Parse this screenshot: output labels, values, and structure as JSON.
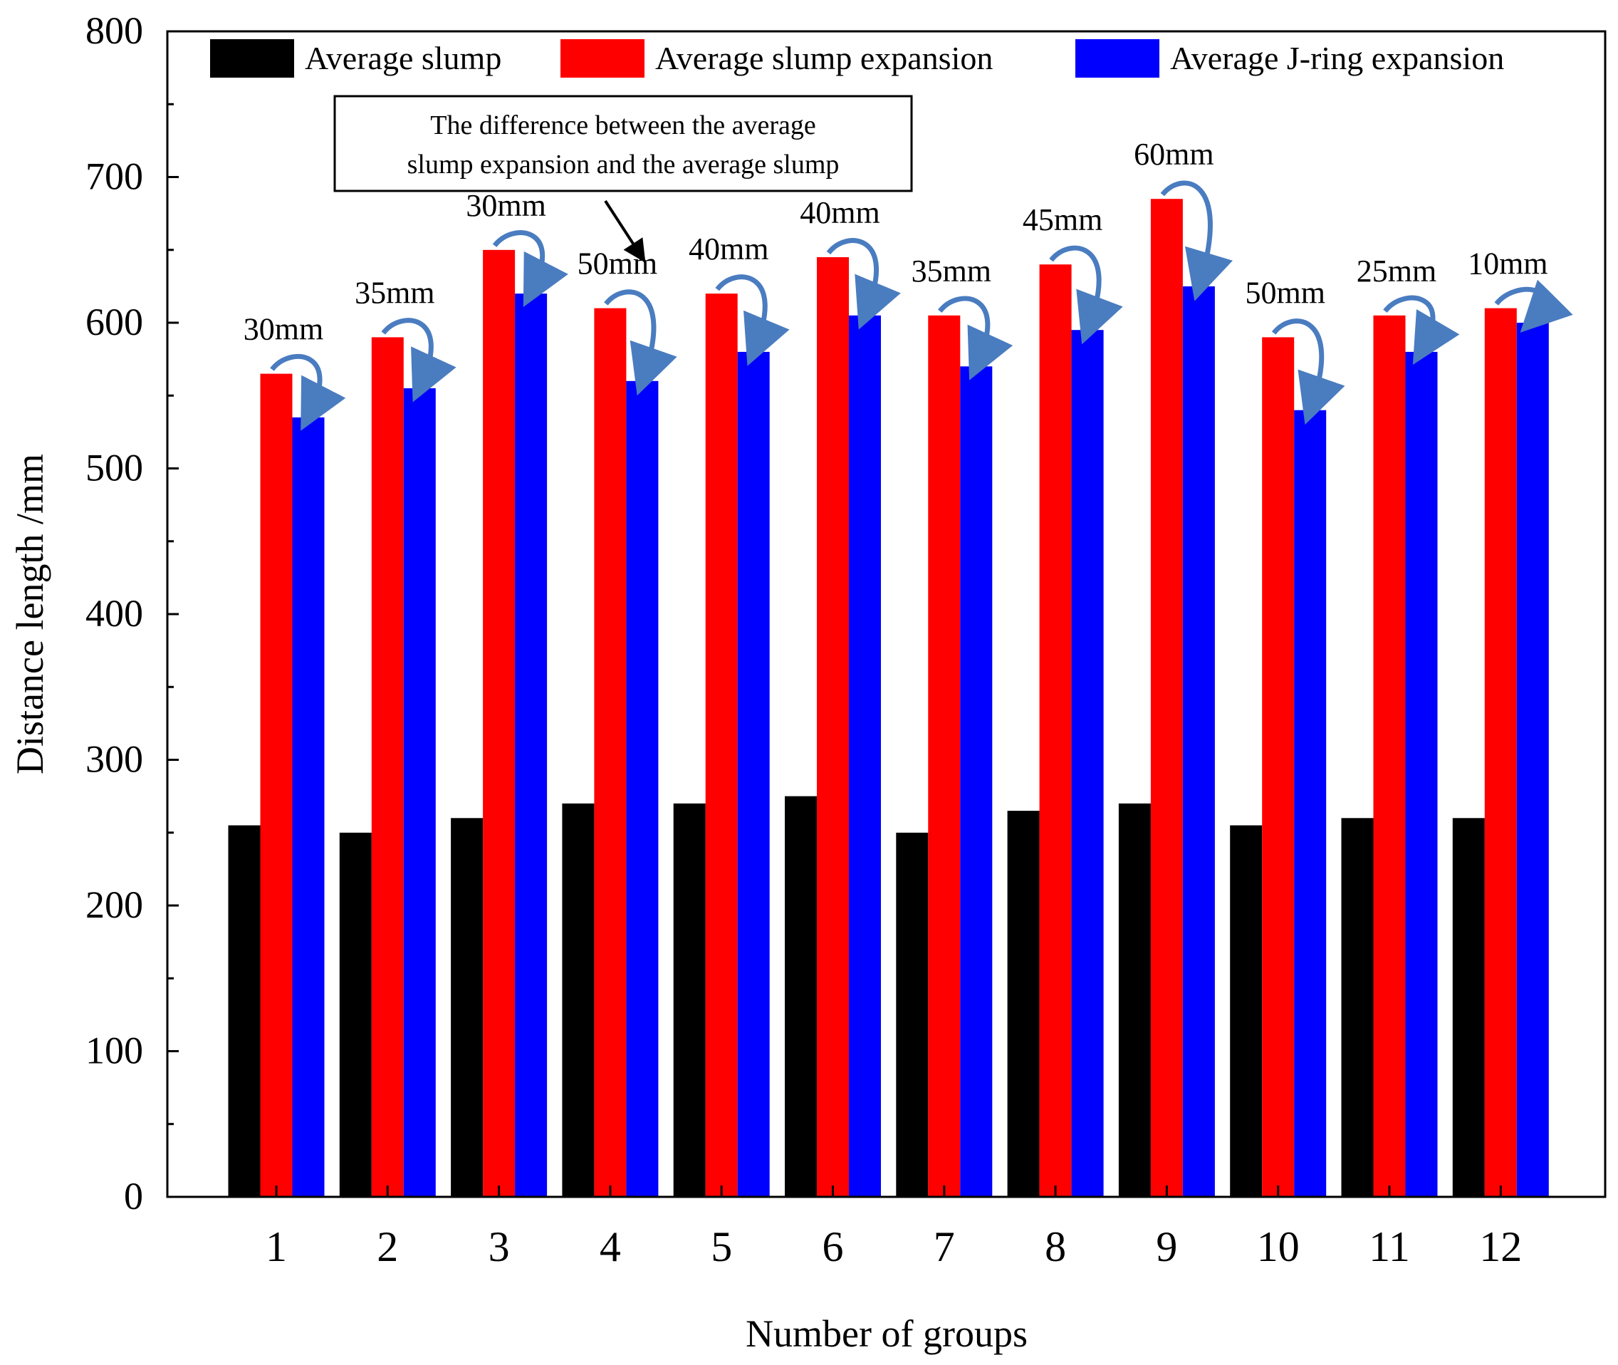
{
  "chart_data": {
    "type": "bar",
    "title": "",
    "xlabel": "Number of groups",
    "ylabel": "Distance length /mm",
    "ylim": [
      0,
      800
    ],
    "yticks": [
      0,
      100,
      200,
      300,
      400,
      500,
      600,
      700,
      800
    ],
    "categories": [
      "1",
      "2",
      "3",
      "4",
      "5",
      "6",
      "7",
      "8",
      "9",
      "10",
      "11",
      "12"
    ],
    "series": [
      {
        "name": "Average slump",
        "color": "#000000",
        "values": [
          255,
          250,
          260,
          270,
          270,
          275,
          250,
          265,
          270,
          255,
          260,
          260
        ]
      },
      {
        "name": "Average slump expansion",
        "color": "#ff0000",
        "values": [
          565,
          590,
          650,
          610,
          620,
          645,
          605,
          640,
          685,
          590,
          605,
          610
        ]
      },
      {
        "name": "Average J-ring expansion",
        "color": "#0000ff",
        "values": [
          535,
          555,
          620,
          560,
          580,
          605,
          570,
          595,
          625,
          540,
          580,
          600
        ]
      }
    ],
    "difference_labels": [
      "30mm",
      "35mm",
      "30mm",
      "50mm",
      "40mm",
      "40mm",
      "35mm",
      "45mm",
      "60mm",
      "50mm",
      "25mm",
      "10mm"
    ],
    "difference_arrow_color": "#4a7cc0",
    "annotation": {
      "lines": [
        "The difference between the average",
        "slump expansion and the average slump"
      ],
      "color": "#c0282d"
    },
    "legend_position": "top",
    "grid": false
  }
}
